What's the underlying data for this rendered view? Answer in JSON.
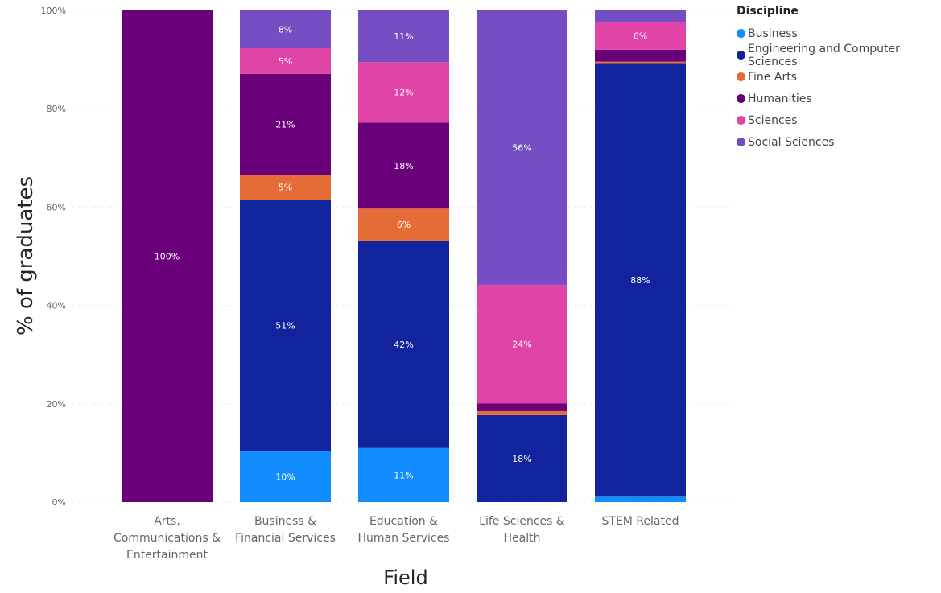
{
  "chart_data": {
    "type": "bar",
    "stacked": "100%",
    "title": "",
    "xlabel": "Field",
    "ylabel": "% of graduates",
    "ylim": [
      0,
      100
    ],
    "yticks": [
      "0%",
      "20%",
      "40%",
      "60%",
      "80%",
      "100%"
    ],
    "ytick_values": [
      0,
      20,
      40,
      60,
      80,
      100
    ],
    "grid": true,
    "legend_position": "top-right",
    "legend_title": "Discipline",
    "categories": [
      [
        "Arts,",
        "Communications &",
        "Entertainment"
      ],
      [
        "Business &",
        "Financial Services"
      ],
      [
        "Education &",
        "Human Services"
      ],
      [
        "Life Sciences &",
        "Health"
      ],
      [
        "STEM Related"
      ]
    ],
    "series": [
      {
        "name": "Business",
        "color": "#118DFF",
        "values": [
          0,
          10.3,
          11.0,
          0,
          1.1
        ],
        "labels": [
          "",
          "10%",
          "11%",
          "",
          ""
        ]
      },
      {
        "name": "Engineering and Computer Sciences",
        "color": "#12239E",
        "values": [
          0,
          51.2,
          42.2,
          17.7,
          88.2
        ],
        "labels": [
          "",
          "51%",
          "42%",
          "18%",
          "88%"
        ]
      },
      {
        "name": "Fine Arts",
        "color": "#E66C37",
        "values": [
          0,
          5.1,
          6.5,
          0.8,
          0.3
        ],
        "labels": [
          "",
          "5%",
          "6%",
          "",
          ""
        ]
      },
      {
        "name": "Humanities",
        "color": "#6B007B",
        "values": [
          100,
          20.5,
          17.5,
          1.6,
          2.4
        ],
        "labels": [
          "100%",
          "21%",
          "18%",
          "",
          ""
        ]
      },
      {
        "name": "Sciences",
        "color": "#E044A7",
        "values": [
          0,
          5.2,
          12.3,
          24.1,
          5.7
        ],
        "labels": [
          "",
          "5%",
          "12%",
          "24%",
          "6%"
        ]
      },
      {
        "name": "Social Sciences",
        "color": "#744EC2",
        "values": [
          0,
          7.7,
          10.5,
          55.8,
          2.3
        ],
        "labels": [
          "",
          "8%",
          "11%",
          "56%",
          ""
        ]
      }
    ]
  }
}
